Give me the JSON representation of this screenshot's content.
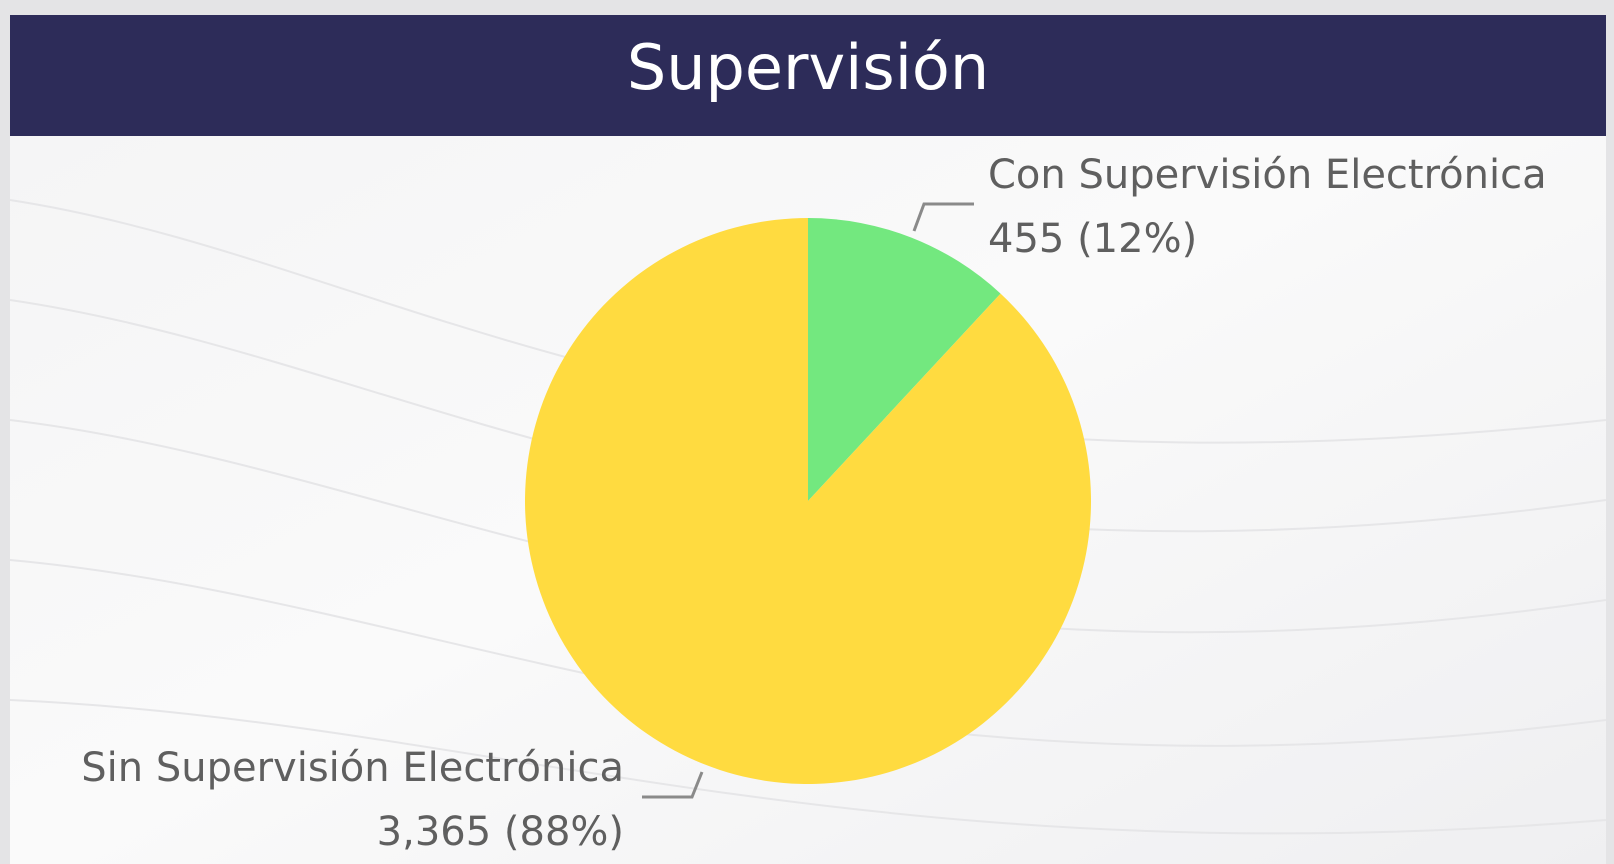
{
  "chart_data": {
    "type": "pie",
    "title": "Supervisión",
    "categories": [
      "Con Supervisión Electrónica",
      "Sin Supervisión Electrónica"
    ],
    "values": [
      455,
      3365
    ],
    "value_labels": [
      "455 (12%)",
      "3,365 (88%)"
    ],
    "colors": [
      "#73e87f",
      "#ffdb40"
    ]
  }
}
